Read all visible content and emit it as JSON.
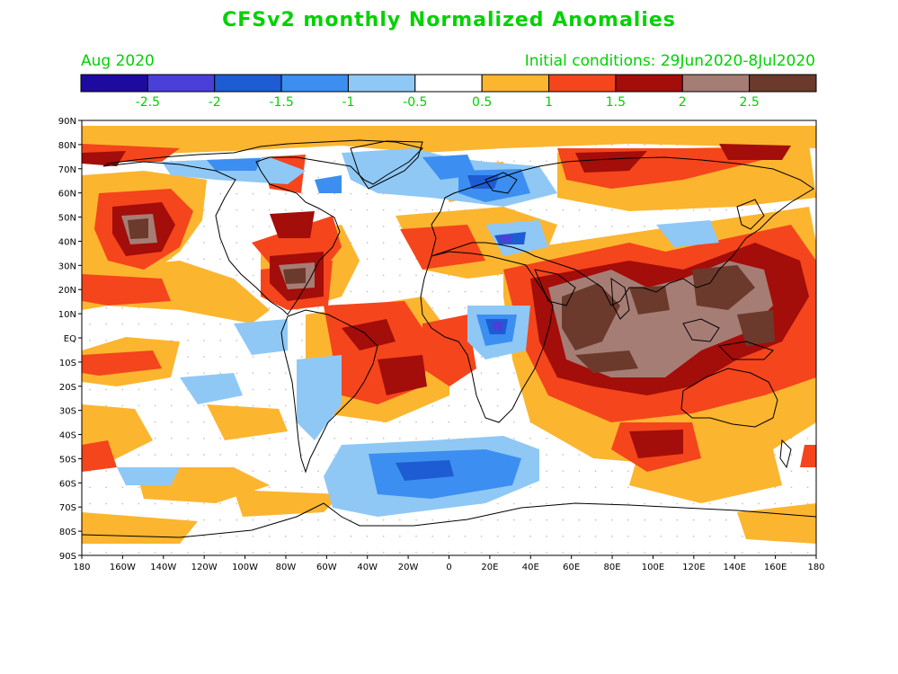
{
  "title": "CFSv2 monthly Normalized Anomalies",
  "month": "Aug 2020",
  "initial_conditions": "Initial conditions: 29Jun2020-8Jul2020",
  "colorbar": {
    "colors": [
      "#1f0aa0",
      "#4a3fd9",
      "#1d5cd2",
      "#3c8ef0",
      "#8fc8f5",
      "#ffffff",
      "#fbb52f",
      "#f4451c",
      "#a30d0a",
      "#a57d74",
      "#6b3a2c"
    ],
    "labels": [
      "-2.5",
      "-2",
      "-1.5",
      "-1",
      "-0.5",
      "0.5",
      "1",
      "1.5",
      "2",
      "2.5"
    ]
  },
  "lat_labels": [
    "90N",
    "80N",
    "70N",
    "60N",
    "50N",
    "40N",
    "30N",
    "20N",
    "10N",
    "EQ",
    "10S",
    "20S",
    "30S",
    "40S",
    "50S",
    "60S",
    "70S",
    "80S",
    "90S"
  ],
  "lon_labels": [
    "180",
    "160W",
    "140W",
    "120W",
    "100W",
    "80W",
    "60W",
    "40W",
    "20W",
    "0",
    "20E",
    "40E",
    "60E",
    "80E",
    "100E",
    "120E",
    "140E",
    "160E",
    "180"
  ]
}
